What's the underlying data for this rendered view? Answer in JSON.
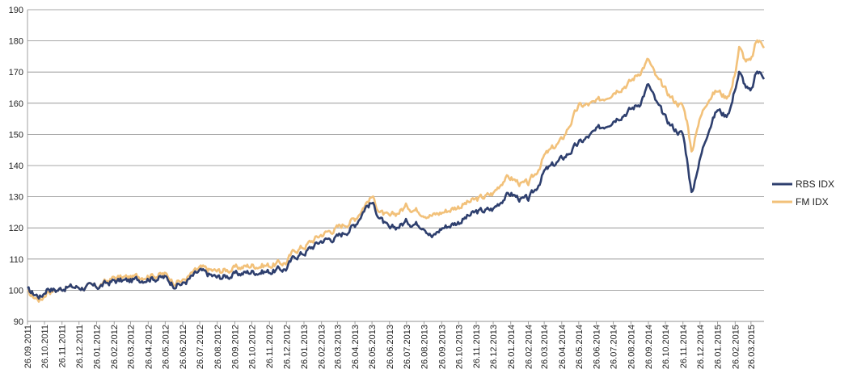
{
  "chart_data": {
    "type": "line",
    "ylim": [
      90,
      190
    ],
    "yticks": [
      90,
      100,
      110,
      120,
      130,
      140,
      150,
      160,
      170,
      180,
      190
    ],
    "grid": "horizontal",
    "legend_position": "right",
    "x_tick_labels": [
      "26.09.2011",
      "26.10.2011",
      "26.11.2011",
      "26.12.2011",
      "26.01.2012",
      "26.02.2012",
      "26.03.2012",
      "26.04.2012",
      "26.05.2012",
      "26.06.2012",
      "26.07.2012",
      "26.08.2012",
      "26.09.2012",
      "26.10.2012",
      "26.11.2012",
      "26.12.2012",
      "26.01.2013",
      "26.02.2013",
      "26.03.2013",
      "26.04.2013",
      "26.05.2013",
      "26.06.2013",
      "26.07.2013",
      "26.08.2013",
      "26.09.2013",
      "26.10.2013",
      "26.11.2013",
      "26.12.2013",
      "26.01.2014",
      "26.02.2014",
      "26.03.2014",
      "26.04.2014",
      "26.05.2014",
      "26.06.2014",
      "26.07.2014",
      "26.08.2014",
      "26.09.2014",
      "26.10.2014",
      "26.11.2014",
      "26.12.2014",
      "26.01.2015",
      "26.02.2015",
      "26.03.2015"
    ],
    "x_range": [
      "2011-09-26",
      "2015-04-18"
    ],
    "series": [
      {
        "name": "RBS IDX",
        "color": "#2E3F6E",
        "points": [
          [
            "2011-09-26",
            100
          ],
          [
            "2011-10-05",
            99
          ],
          [
            "2011-10-20",
            98
          ],
          [
            "2011-11-01",
            101
          ],
          [
            "2011-11-15",
            100
          ],
          [
            "2011-12-01",
            101
          ],
          [
            "2011-12-26",
            101
          ],
          [
            "2012-01-26",
            101
          ],
          [
            "2012-02-26",
            103
          ],
          [
            "2012-03-26",
            103
          ],
          [
            "2012-04-26",
            104
          ],
          [
            "2012-05-26",
            104
          ],
          [
            "2012-06-10",
            102
          ],
          [
            "2012-06-26",
            102
          ],
          [
            "2012-07-26",
            106
          ],
          [
            "2012-08-26",
            104
          ],
          [
            "2012-09-26",
            105
          ],
          [
            "2012-10-26",
            106
          ],
          [
            "2012-11-26",
            106
          ],
          [
            "2012-12-26",
            107
          ],
          [
            "2013-01-10",
            111
          ],
          [
            "2013-01-26",
            112
          ],
          [
            "2013-02-26",
            116
          ],
          [
            "2013-03-26",
            117
          ],
          [
            "2013-04-26",
            121
          ],
          [
            "2013-05-15",
            127
          ],
          [
            "2013-05-26",
            128
          ],
          [
            "2013-06-10",
            123
          ],
          [
            "2013-06-26",
            119
          ],
          [
            "2013-07-26",
            122
          ],
          [
            "2013-08-26",
            121
          ],
          [
            "2013-09-10",
            117
          ],
          [
            "2013-09-26",
            120
          ],
          [
            "2013-10-26",
            122
          ],
          [
            "2013-11-26",
            125
          ],
          [
            "2013-12-26",
            126
          ],
          [
            "2014-01-15",
            130
          ],
          [
            "2014-01-26",
            131
          ],
          [
            "2014-02-15",
            129
          ],
          [
            "2014-02-26",
            129
          ],
          [
            "2014-03-10",
            132
          ],
          [
            "2014-03-26",
            138
          ],
          [
            "2014-04-26",
            142
          ],
          [
            "2014-05-26",
            147
          ],
          [
            "2014-06-26",
            151
          ],
          [
            "2014-07-26",
            155
          ],
          [
            "2014-08-26",
            158
          ],
          [
            "2014-09-10",
            160
          ],
          [
            "2014-09-26",
            166
          ],
          [
            "2014-10-10",
            160
          ],
          [
            "2014-10-26",
            155
          ],
          [
            "2014-11-10",
            152
          ],
          [
            "2014-11-26",
            150
          ],
          [
            "2014-12-05",
            140
          ],
          [
            "2014-12-12",
            130
          ],
          [
            "2014-12-20",
            138
          ],
          [
            "2014-12-26",
            142
          ],
          [
            "2015-01-10",
            152
          ],
          [
            "2015-01-26",
            158
          ],
          [
            "2015-02-10",
            156
          ],
          [
            "2015-02-20",
            160
          ],
          [
            "2015-02-26",
            165
          ],
          [
            "2015-03-05",
            170
          ],
          [
            "2015-03-15",
            166
          ],
          [
            "2015-03-26",
            163
          ],
          [
            "2015-04-05",
            170
          ],
          [
            "2015-04-18",
            169
          ]
        ]
      },
      {
        "name": "FM IDX",
        "color": "#F2C17A",
        "points": [
          [
            "2011-09-26",
            99
          ],
          [
            "2011-10-05",
            98
          ],
          [
            "2011-10-20",
            97
          ],
          [
            "2011-11-01",
            100
          ],
          [
            "2011-11-15",
            100
          ],
          [
            "2011-12-01",
            101
          ],
          [
            "2011-12-26",
            101
          ],
          [
            "2012-01-26",
            101
          ],
          [
            "2012-02-26",
            104
          ],
          [
            "2012-03-26",
            104
          ],
          [
            "2012-04-26",
            105
          ],
          [
            "2012-05-26",
            105
          ],
          [
            "2012-06-10",
            103
          ],
          [
            "2012-06-26",
            103
          ],
          [
            "2012-07-26",
            107
          ],
          [
            "2012-08-26",
            106
          ],
          [
            "2012-09-26",
            107
          ],
          [
            "2012-10-26",
            108
          ],
          [
            "2012-11-26",
            108
          ],
          [
            "2012-12-26",
            109
          ],
          [
            "2013-01-10",
            113
          ],
          [
            "2013-01-26",
            114
          ],
          [
            "2013-02-26",
            118
          ],
          [
            "2013-03-26",
            120
          ],
          [
            "2013-04-26",
            123
          ],
          [
            "2013-05-15",
            128
          ],
          [
            "2013-05-26",
            130
          ],
          [
            "2013-06-10",
            125
          ],
          [
            "2013-06-26",
            123
          ],
          [
            "2013-07-26",
            127
          ],
          [
            "2013-08-26",
            125
          ],
          [
            "2013-09-10",
            124
          ],
          [
            "2013-09-26",
            125
          ],
          [
            "2013-10-26",
            127
          ],
          [
            "2013-11-26",
            129
          ],
          [
            "2013-12-26",
            131
          ],
          [
            "2014-01-15",
            136
          ],
          [
            "2014-01-26",
            136
          ],
          [
            "2014-02-15",
            134
          ],
          [
            "2014-02-26",
            134
          ],
          [
            "2014-03-10",
            137
          ],
          [
            "2014-03-26",
            143
          ],
          [
            "2014-04-26",
            148
          ],
          [
            "2014-05-26",
            159
          ],
          [
            "2014-06-26",
            160
          ],
          [
            "2014-07-26",
            164
          ],
          [
            "2014-08-26",
            167
          ],
          [
            "2014-09-10",
            170
          ],
          [
            "2014-09-26",
            174
          ],
          [
            "2014-10-10",
            168
          ],
          [
            "2014-10-26",
            164
          ],
          [
            "2014-11-10",
            161
          ],
          [
            "2014-11-26",
            159
          ],
          [
            "2014-12-05",
            153
          ],
          [
            "2014-12-12",
            143
          ],
          [
            "2014-12-20",
            152
          ],
          [
            "2014-12-26",
            155
          ],
          [
            "2015-01-10",
            162
          ],
          [
            "2015-01-26",
            164
          ],
          [
            "2015-02-10",
            162
          ],
          [
            "2015-02-20",
            165
          ],
          [
            "2015-02-26",
            170
          ],
          [
            "2015-03-05",
            178
          ],
          [
            "2015-03-15",
            174
          ],
          [
            "2015-03-26",
            173
          ],
          [
            "2015-04-05",
            180
          ],
          [
            "2015-04-18",
            179
          ]
        ]
      }
    ]
  }
}
